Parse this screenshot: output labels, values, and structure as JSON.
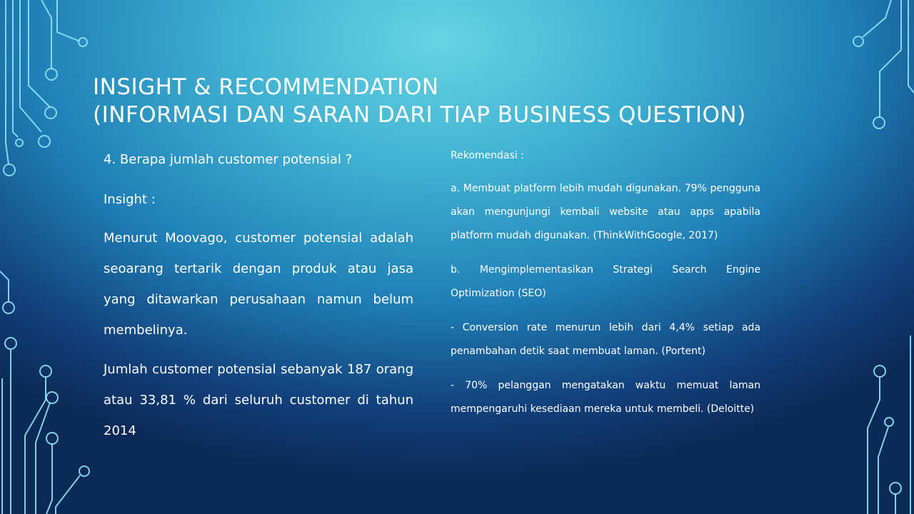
{
  "title": {
    "line1": "INSIGHT & RECOMMENDATION",
    "line2": "(INFORMASI DAN SARAN DARI TIAP BUSINESS QUESTION)"
  },
  "left": {
    "question": "4. Berapa jumlah customer potensial ?",
    "insight_label": "Insight :",
    "para1": "Menurut Moovago, customer potensial adalah seoarang tertarik dengan produk atau jasa yang ditawarkan perusahaan namun belum membelinya.",
    "para2": "Jumlah customer potensial sebanyak 187 orang atau 33,81 % dari seluruh customer di tahun 2014"
  },
  "right": {
    "heading": "Rekomendasi :",
    "item_a": "a. Membuat platform lebih mudah digunakan. 79% pengguna akan mengunjungi kembali website atau apps apabila platform mudah digunakan. (ThinkWithGoogle, 2017)",
    "item_b": "b. Mengimplementasikan Strategi Search Engine Optimization (SEO)",
    "bullet1": "- Conversion rate menurun lebih dari 4,4% setiap ada penambahan detik saat membuat laman. (Portent)",
    "bullet2": "- 70% pelanggan mengatakan waktu memuat laman mempengaruhi kesediaan mereka untuk membeli. (Deloitte)"
  },
  "colors": {
    "circuit": "#8fe3f2",
    "text": "#ffffff"
  }
}
